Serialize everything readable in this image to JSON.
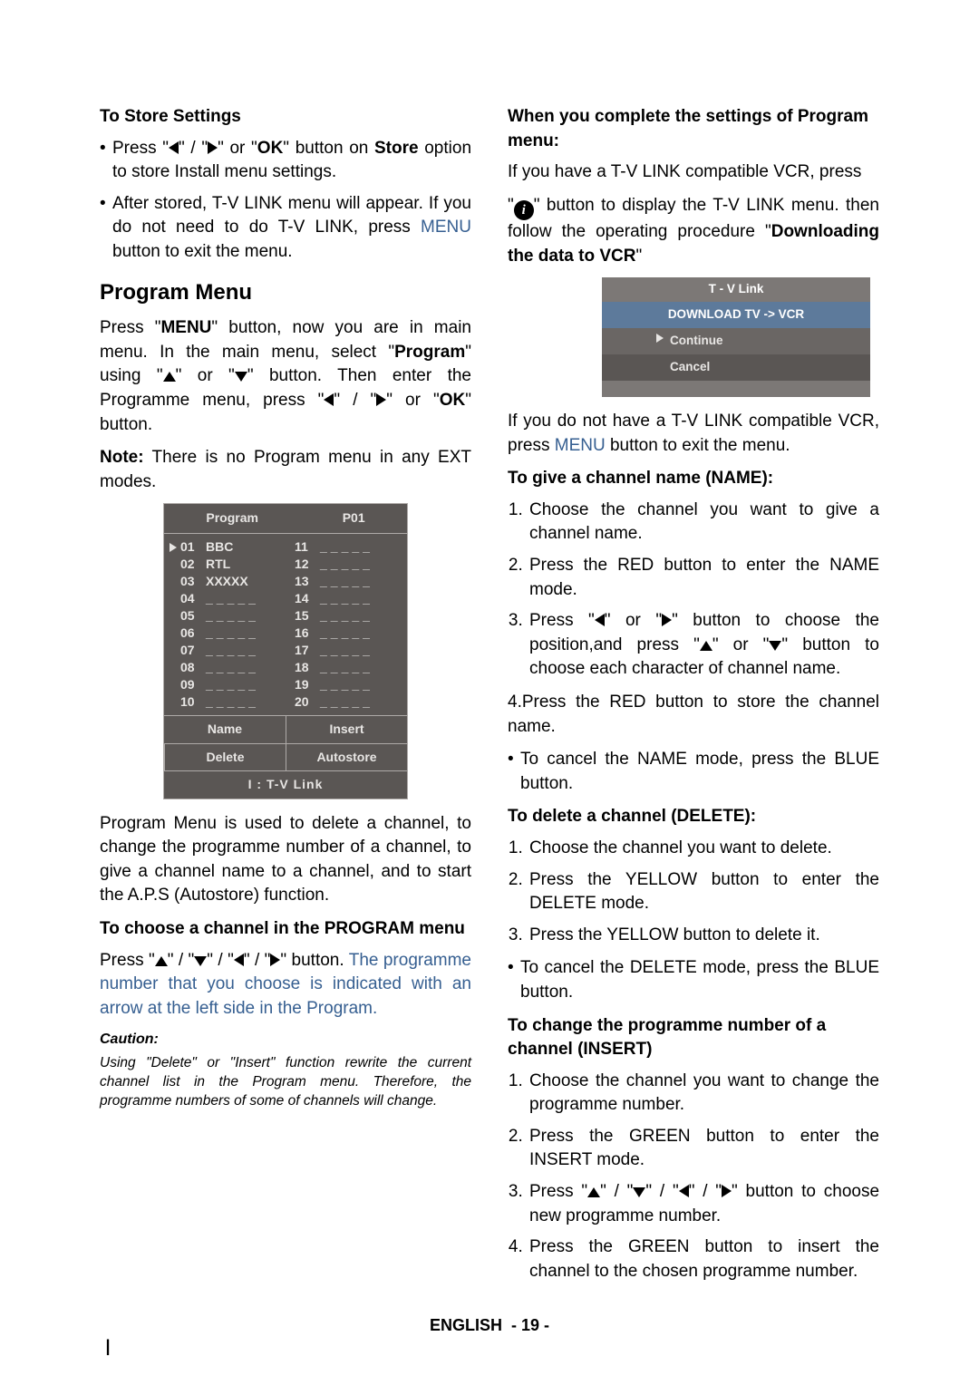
{
  "left": {
    "storeHead": "To Store Settings",
    "bullet1a": "Press \"",
    "bullet1b": "\" / \"",
    "bullet1c": "\" or \"",
    "bullet1d": "OK",
    "bullet1e": "\" button on ",
    "bullet1f": "Store",
    "bullet1g": " option to store Install menu settings.",
    "bullet2a": "After stored, T-V LINK menu will appear. If you do not need to do T-V LINK, press ",
    "bullet2b": "MENU",
    "bullet2c": " button to exit the menu.",
    "h2": "Program Menu",
    "p1a": "Press \"",
    "p1b": "MENU",
    "p1c": "\" button, now you are in main menu. In the main menu, select \"",
    "p1d": "Program",
    "p1e": "\" using \"",
    "p1f": "\" or \"",
    "p1g": "\" button. Then enter the Programme menu, press \"",
    "p1h": "\" / \"",
    "p1i": "\" or \"",
    "p1j": "OK",
    "p1k": "\" button.",
    "note1": "Note:",
    "note2": " There is no Program menu in any EXT modes.",
    "osd": {
      "title": "Program",
      "current": "P01",
      "rowsL": [
        {
          "n": "01",
          "v": "BBC",
          "sel": true
        },
        {
          "n": "02",
          "v": "RTL"
        },
        {
          "n": "03",
          "v": "XXXXX"
        },
        {
          "n": "04",
          "v": "_____"
        },
        {
          "n": "05",
          "v": "_____"
        },
        {
          "n": "06",
          "v": "_____"
        },
        {
          "n": "07",
          "v": "_____"
        },
        {
          "n": "08",
          "v": "_____"
        },
        {
          "n": "09",
          "v": "_____"
        },
        {
          "n": "10",
          "v": "_____"
        }
      ],
      "rowsR": [
        {
          "n": "11",
          "v": "_____"
        },
        {
          "n": "12",
          "v": "_____"
        },
        {
          "n": "13",
          "v": "_____"
        },
        {
          "n": "14",
          "v": "_____"
        },
        {
          "n": "15",
          "v": "_____"
        },
        {
          "n": "16",
          "v": "_____"
        },
        {
          "n": "17",
          "v": "_____"
        },
        {
          "n": "18",
          "v": "_____"
        },
        {
          "n": "19",
          "v": "_____"
        },
        {
          "n": "20",
          "v": "_____"
        }
      ],
      "b1": "Name",
      "b2": "Insert",
      "b3": "Delete",
      "b4": "Autostore",
      "foot": "I  :   T-V  Link"
    },
    "p2": "Program Menu is used to delete a channel, to change the programme number of a channel, to give a channel name to a channel, and to start the A.P.S (Autostore) function.",
    "sub2": "To choose a channel in the PROGRAM menu",
    "p3a": " Press \"",
    "p3b": "\" / \"",
    "p3c": "\" / \"",
    "p3d": "\" / \"",
    "p3e": "\" button.",
    "p3f": "The programme number that you choose is indicated with an arrow at the left side in the Program.",
    "cautionHead": "Caution:",
    "caution": "Using \"Delete\" or \"Insert\" function rewrite the current channel list in the Program menu. Therefore, the programme numbers of some of channels will change."
  },
  "right": {
    "head1": "When you complete the settings of Program menu:",
    "p1": "If you have a T-V LINK compatible VCR, press",
    "p2a": "\"",
    "p2b": "\" button to display the T-V LINK menu. then follow the operating procedure \"",
    "p2c": "Downloading the data to VCR",
    "p2d": "\"",
    "tvlink": {
      "h1": "T - V Link",
      "h2": "DOWNLOAD TV -> VCR",
      "r1": "Continue",
      "r2": "Cancel"
    },
    "p3a": "If you do not have a T-V LINK compatible VCR, press ",
    "p3b": "MENU",
    "p3c": " button to exit the menu.",
    "sub2": "To give a channel name (NAME):",
    "ol1_1": "Choose the channel you want to give a channel name.",
    "ol1_2": "Press the RED button to enter the NAME mode.",
    "ol1_3a": "Press \"",
    "ol1_3b": "\" or \"",
    "ol1_3c": "\" button to choose the position,and press \"",
    "ol1_3d": "\" or \"",
    "ol1_3e": "\" button to choose each character of channel name.",
    "p4": "4.Press the RED button to store the channel name.",
    "bul1": "To cancel the NAME mode, press the BLUE button.",
    "sub3": "To delete a channel (DELETE):",
    "ol2_1": "Choose the channel you want to delete.",
    "ol2_2": "Press the YELLOW button to enter the DELETE mode.",
    "ol2_3": "Press the YELLOW button to delete it.",
    "bul2": "To cancel the DELETE mode, press the BLUE button.",
    "sub4": "To change the programme number of a channel (INSERT)",
    "ol3_1": "Choose the channel you want to change the programme number.",
    "ol3_2": "Press the GREEN button to enter the INSERT mode.",
    "ol3_3a": " Press \"",
    "ol3_3b": "\" / \"",
    "ol3_3c": "\" / \"",
    "ol3_3d": "\" / \"",
    "ol3_3e": "\" button to choose new programme number.",
    "ol3_4": "Press the GREEN button to insert the channel to the chosen programme number."
  },
  "footer": {
    "lang": "ENGLISH",
    "page": "- 19 -"
  }
}
